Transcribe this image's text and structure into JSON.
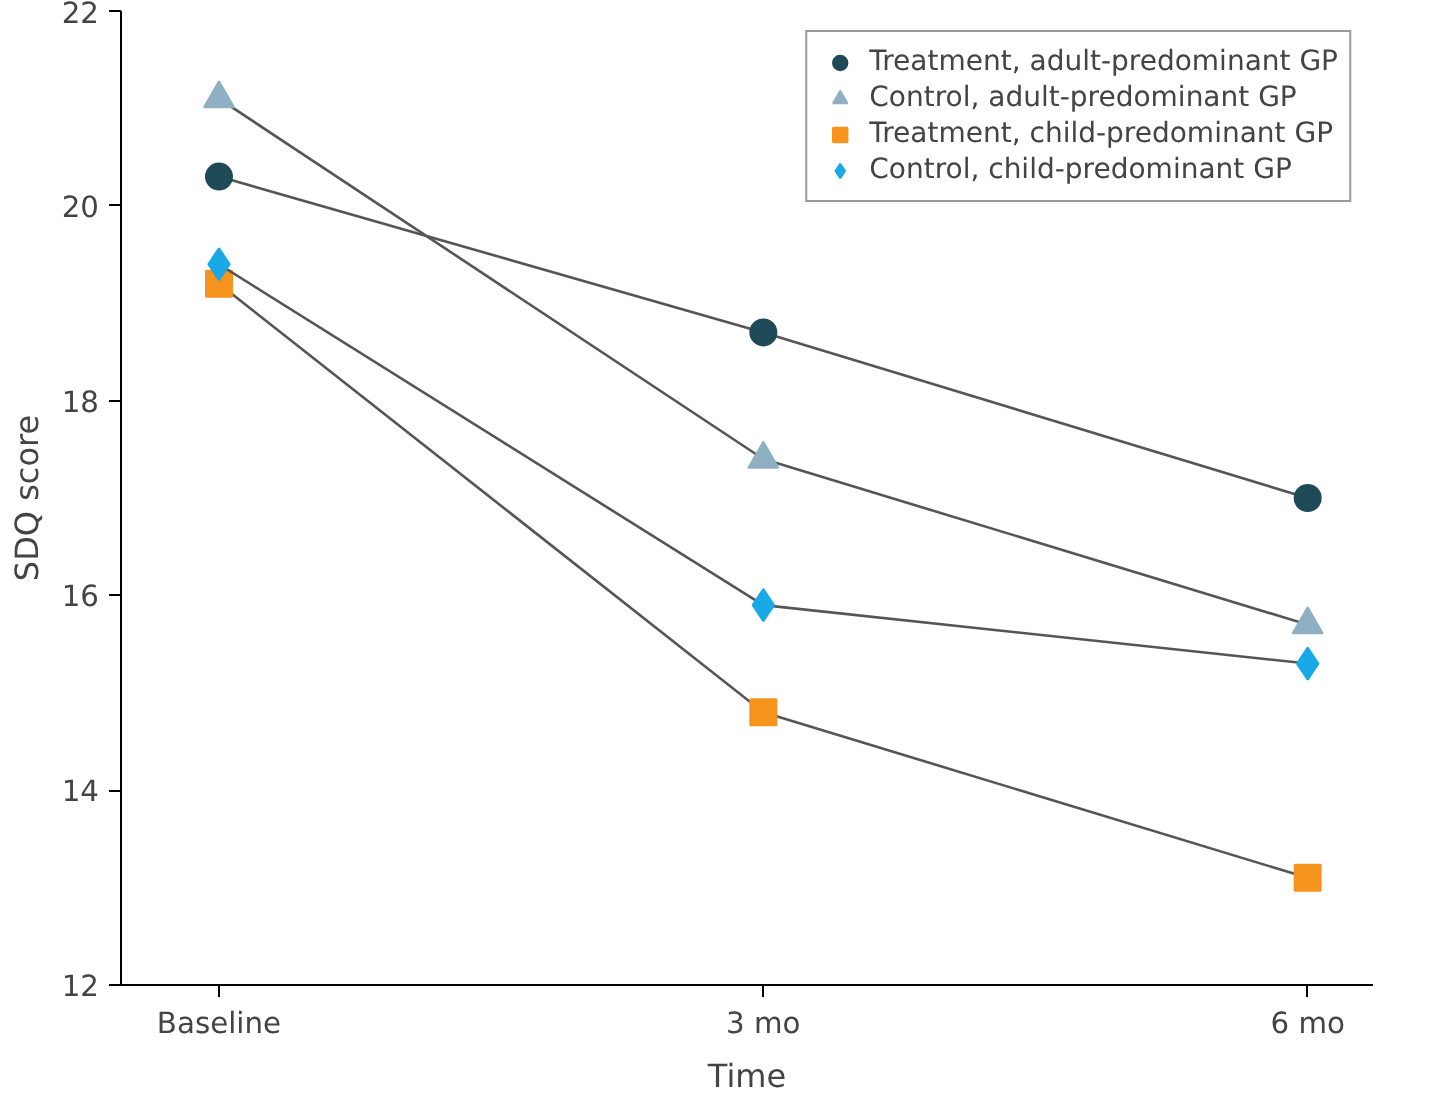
{
  "chart_data": {
    "type": "line",
    "xlabel": "Time",
    "ylabel": "SDQ score",
    "categories": [
      "Baseline",
      "3 mo",
      "6 mo"
    ],
    "ylim": [
      12,
      22
    ],
    "yticks": [
      12,
      14,
      16,
      18,
      20,
      22
    ],
    "grid": false,
    "legend": "top right",
    "series": [
      {
        "name": "Treatment, adult-predominant GP",
        "color": "#1f4a57",
        "marker": "circle",
        "values": [
          20.3,
          18.7,
          17.0
        ]
      },
      {
        "name": "Control, adult-predominant GP",
        "color": "#8fb0c2",
        "marker": "triangle",
        "values": [
          21.1,
          17.4,
          15.7
        ]
      },
      {
        "name": "Treatment, child-predominant GP",
        "color": "#f7941d",
        "marker": "square",
        "values": [
          19.2,
          14.8,
          13.1
        ]
      },
      {
        "name": "Control, child-predominant GP",
        "color": "#19a9e6",
        "marker": "diamond",
        "values": [
          19.4,
          15.9,
          15.3
        ]
      }
    ]
  }
}
